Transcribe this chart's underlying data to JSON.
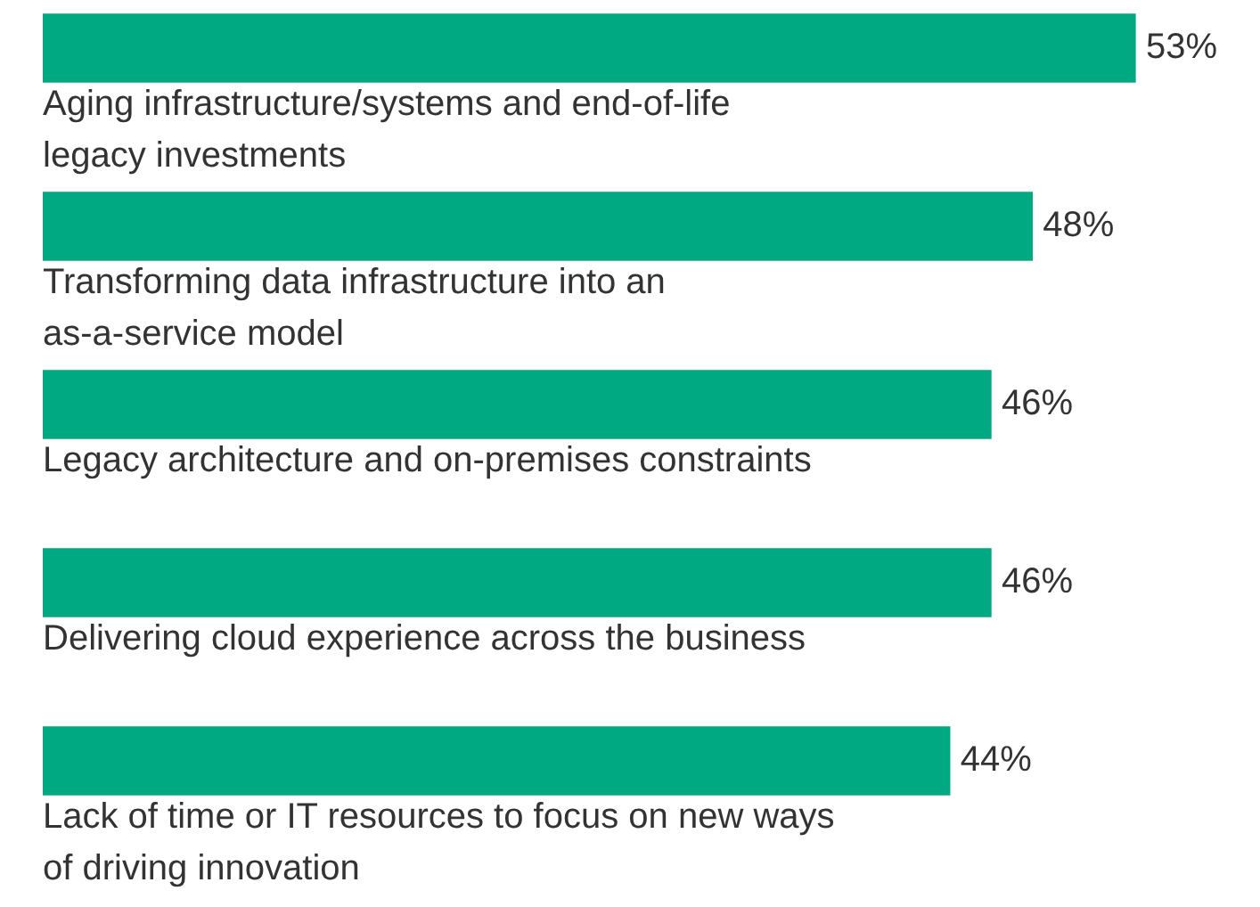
{
  "chart_data": {
    "type": "bar",
    "orientation": "horizontal",
    "categories": [
      "Aging infrastructure/systems and end-of-life\nlegacy investments",
      "Transforming data infrastructure into an\nas-a-service model",
      "Legacy architecture and on-premises constraints",
      "Delivering cloud experience across the business",
      "Lack of time or IT resources to focus on new ways\nof driving innovation"
    ],
    "values": [
      53,
      48,
      46,
      46,
      44
    ],
    "value_labels": [
      "53%",
      "48%",
      "46%",
      "46%",
      "44%"
    ],
    "color": "#01a982",
    "legend": false
  }
}
